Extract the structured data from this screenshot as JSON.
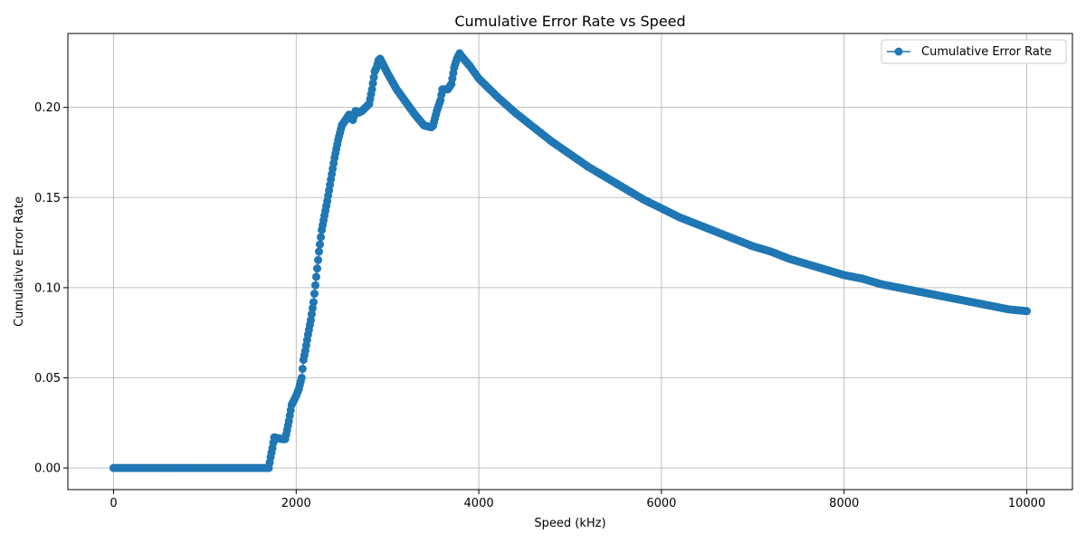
{
  "chart_data": {
    "type": "line",
    "title": "Cumulative Error Rate vs Speed",
    "xlabel": "Speed (kHz)",
    "ylabel": "Cumulative Error Rate",
    "xlim": [
      -500,
      10500
    ],
    "ylim": [
      -0.012,
      0.241
    ],
    "xticks": [
      0,
      2000,
      4000,
      6000,
      8000,
      10000
    ],
    "xtick_labels": [
      "0",
      "2000",
      "4000",
      "6000",
      "8000",
      "10000"
    ],
    "yticks": [
      0.0,
      0.05,
      0.1,
      0.15,
      0.2
    ],
    "ytick_labels": [
      "0.00",
      "0.05",
      "0.10",
      "0.15",
      "0.20"
    ],
    "grid": true,
    "legend_position": "top-right",
    "color": "#1f77b4",
    "series": [
      {
        "name": "Cumulative Error Rate",
        "marker": "circle",
        "x": [
          0,
          200,
          400,
          600,
          800,
          1000,
          1200,
          1400,
          1600,
          1690,
          1700,
          1720,
          1740,
          1760,
          1800,
          1850,
          1880,
          1900,
          1920,
          1950,
          2000,
          2030,
          2060,
          2080,
          2100,
          2130,
          2160,
          2190,
          2220,
          2250,
          2280,
          2310,
          2340,
          2380,
          2420,
          2460,
          2500,
          2540,
          2580,
          2620,
          2650,
          2680,
          2720,
          2760,
          2800,
          2830,
          2860,
          2880,
          2900,
          2920,
          3000,
          3100,
          3200,
          3300,
          3400,
          3480,
          3500,
          3540,
          3580,
          3600,
          3620,
          3660,
          3700,
          3730,
          3760,
          3790,
          3800,
          3850,
          3900,
          4000,
          4200,
          4400,
          4600,
          4800,
          5000,
          5200,
          5400,
          5600,
          5800,
          6000,
          6200,
          6400,
          6600,
          6800,
          7000,
          7200,
          7400,
          7600,
          7800,
          8000,
          8200,
          8400,
          8600,
          8800,
          9000,
          9200,
          9400,
          9600,
          9800,
          10000
        ],
        "y": [
          0.0,
          0.0,
          0.0,
          0.0,
          0.0,
          0.0,
          0.0,
          0.0,
          0.0,
          0.0,
          0.0,
          0.006,
          0.011,
          0.017,
          0.0165,
          0.016,
          0.016,
          0.021,
          0.026,
          0.035,
          0.04,
          0.044,
          0.05,
          0.06,
          0.065,
          0.074,
          0.082,
          0.092,
          0.106,
          0.12,
          0.132,
          0.14,
          0.148,
          0.16,
          0.172,
          0.182,
          0.19,
          0.193,
          0.196,
          0.193,
          0.198,
          0.197,
          0.198,
          0.2,
          0.202,
          0.21,
          0.22,
          0.222,
          0.226,
          0.227,
          0.219,
          0.21,
          0.203,
          0.196,
          0.19,
          0.189,
          0.19,
          0.198,
          0.204,
          0.21,
          0.21,
          0.21,
          0.213,
          0.222,
          0.227,
          0.23,
          0.229,
          0.226,
          0.223,
          0.216,
          0.206,
          0.197,
          0.189,
          0.181,
          0.174,
          0.167,
          0.161,
          0.155,
          0.149,
          0.144,
          0.139,
          0.135,
          0.131,
          0.127,
          0.123,
          0.12,
          0.116,
          0.113,
          0.11,
          0.107,
          0.105,
          0.102,
          0.1,
          0.098,
          0.096,
          0.094,
          0.092,
          0.09,
          0.088,
          0.087
        ]
      }
    ]
  }
}
